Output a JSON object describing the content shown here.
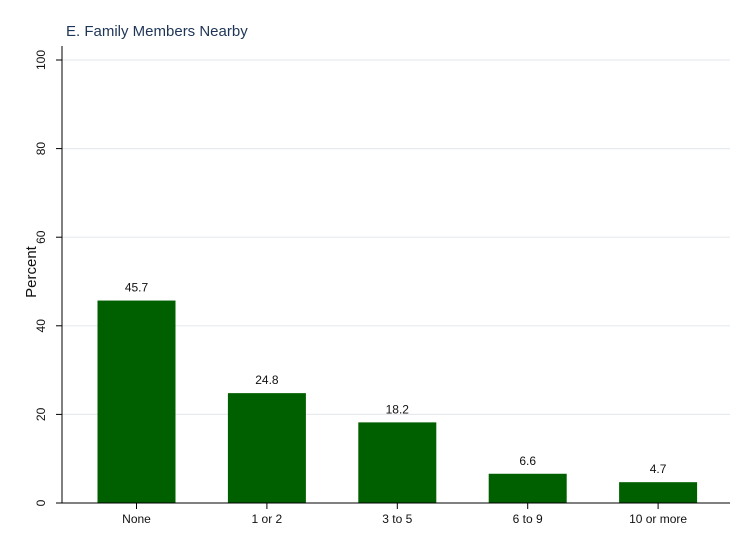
{
  "chart_data": {
    "type": "bar",
    "title": "E. Family Members Nearby",
    "xlabel": "",
    "ylabel": "Percent",
    "categories": [
      "None",
      "1 or 2",
      "3 to 5",
      "6 to 9",
      "10 or more"
    ],
    "values": [
      45.7,
      24.8,
      18.2,
      6.6,
      4.7
    ],
    "data_labels": [
      "45.7",
      "24.8",
      "18.2",
      "6.6",
      "4.7"
    ],
    "y_ticks": [
      0,
      20,
      40,
      60,
      80,
      100
    ],
    "y_tick_labels": [
      "0",
      "20",
      "40",
      "60",
      "80",
      "100"
    ],
    "ylim": [
      0,
      100
    ],
    "grid": true,
    "legend": "none"
  },
  "colors": {
    "bar": "#006000",
    "title": "#1f3557",
    "grid": "#e6ebef",
    "axis": "#000000"
  }
}
